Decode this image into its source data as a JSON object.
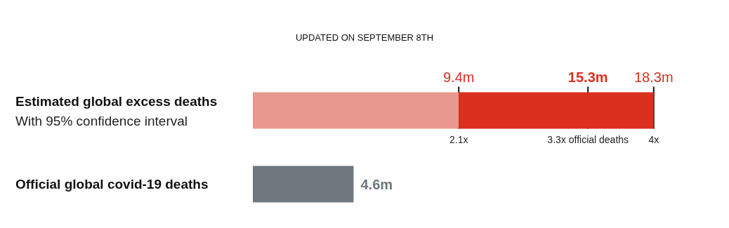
{
  "chart_data": {
    "type": "bar",
    "orientation": "horizontal",
    "stacked": true,
    "title": "UPDATED ON SEPTEMBER 8TH",
    "categories": [
      "Estimated global excess deaths\nWith 95% confidence interval",
      "Official global covid-19 deaths"
    ],
    "series": [
      {
        "colors": [
          "#e99890",
          "#6e787d"
        ],
        "values": [
          9.4,
          4.6
        ],
        "value_labels": [
          null,
          "4.6m"
        ]
      },
      {
        "color": "#db3020",
        "values": [
          8.9,
          null
        ]
      }
    ],
    "tick_labels": "y",
    "grid": false,
    "ref_lines": [
      {
        "axis": "x",
        "value": 15.3,
        "label": "15.3m",
        "color": "#111111"
      }
    ],
    "annotations": [
      {
        "text": "9.4m",
        "x": 9.4,
        "y": "Estimated global excess deaths\nWith 95% confidence interval"
      },
      {
        "text": "2.1x",
        "x": 9.4,
        "y": "Estimated global excess deaths\nWith 95% confidence interval"
      },
      {
        "text": "3.3x official deaths",
        "x": 15.3,
        "y": "Estimated global excess deaths\nWith 95% confidence interval"
      },
      {
        "text": "18.3m",
        "x": 18.3,
        "y": "Estimated global excess deaths\nWith 95% confidence interval"
      },
      {
        "text": "4x",
        "x": 18.3,
        "y": "Estimated global excess deaths\nWith 95% confidence interval"
      }
    ]
  }
}
